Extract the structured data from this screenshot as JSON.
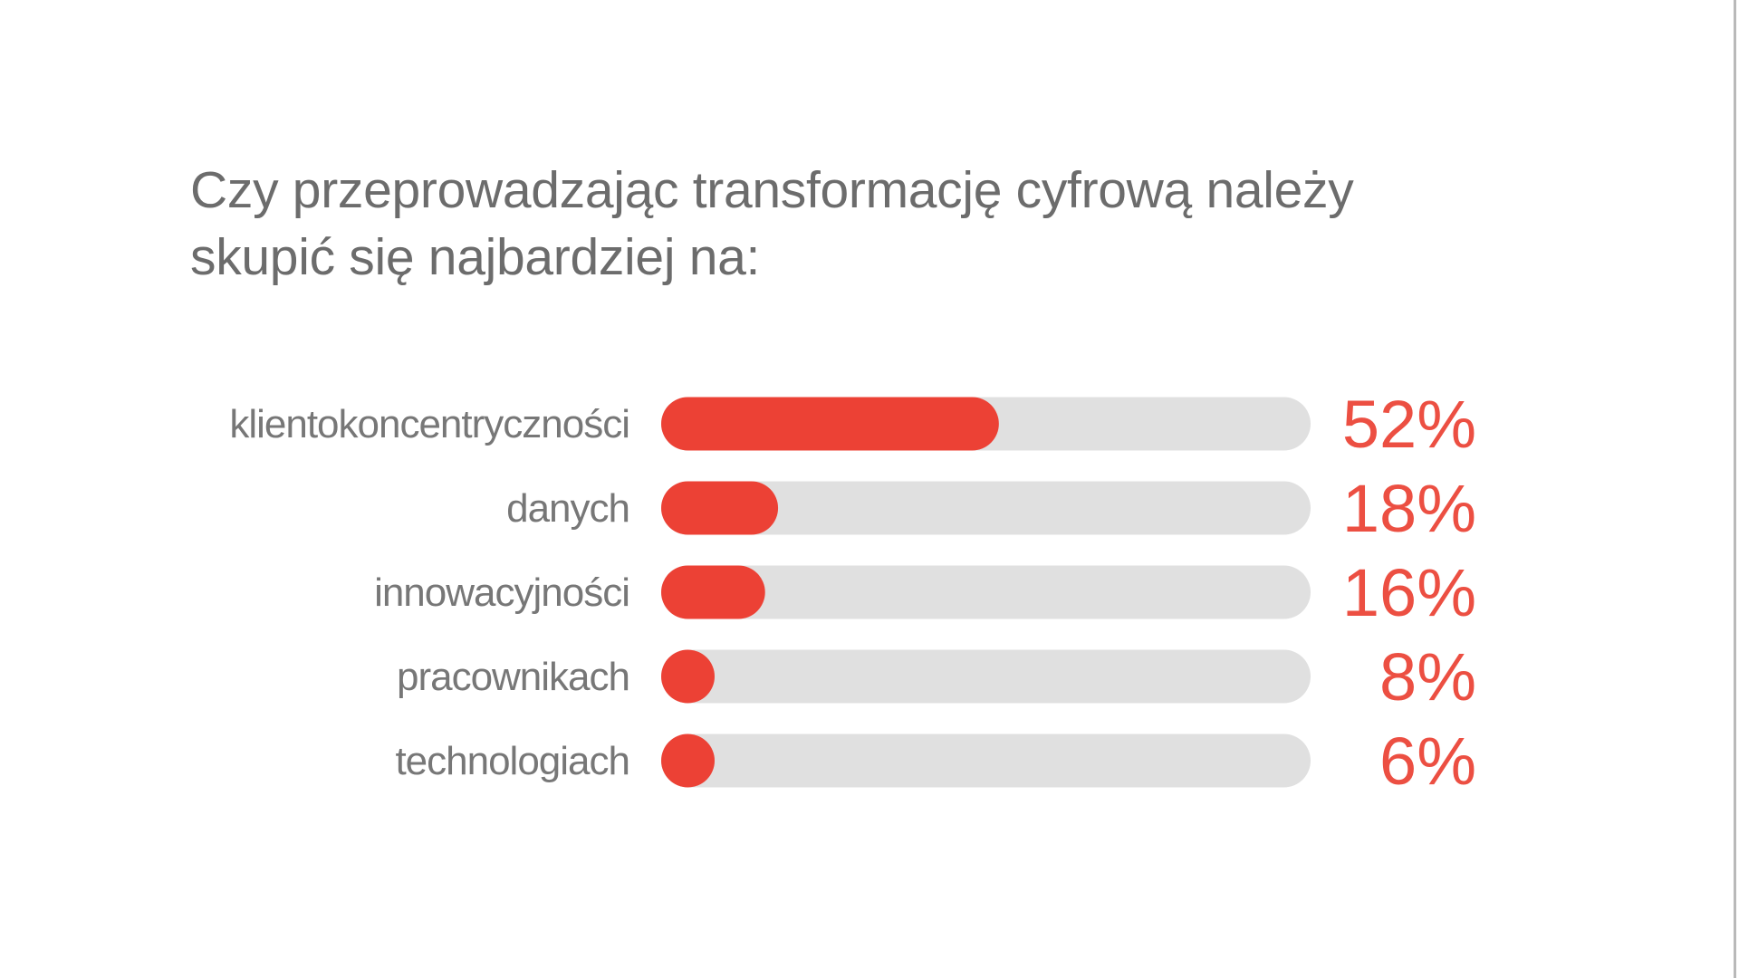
{
  "title_lines": [
    "Czy przeprowadzając transformację cyfrową należy",
    "skupić się najbardziej na:"
  ],
  "colors": {
    "bar_fill": "#ec4135",
    "bar_track": "#e0e0e0",
    "value_text": "#ec4f42",
    "label_text": "#777777",
    "title_text": "#6c6c6c"
  },
  "chart_data": {
    "type": "bar",
    "orientation": "horizontal",
    "title": "Czy przeprowadzając transformację cyfrową należy skupić się najbardziej na:",
    "categories": [
      "klientokoncentryczności",
      "danych",
      "innowacyjności",
      "pracownikach",
      "technologiach"
    ],
    "values": [
      52,
      18,
      16,
      8,
      6
    ],
    "value_labels": [
      "52%",
      "18%",
      "16%",
      "8%",
      "6%"
    ],
    "xlim": [
      0,
      100
    ],
    "unit": "%",
    "grid": false,
    "legend": "none"
  }
}
